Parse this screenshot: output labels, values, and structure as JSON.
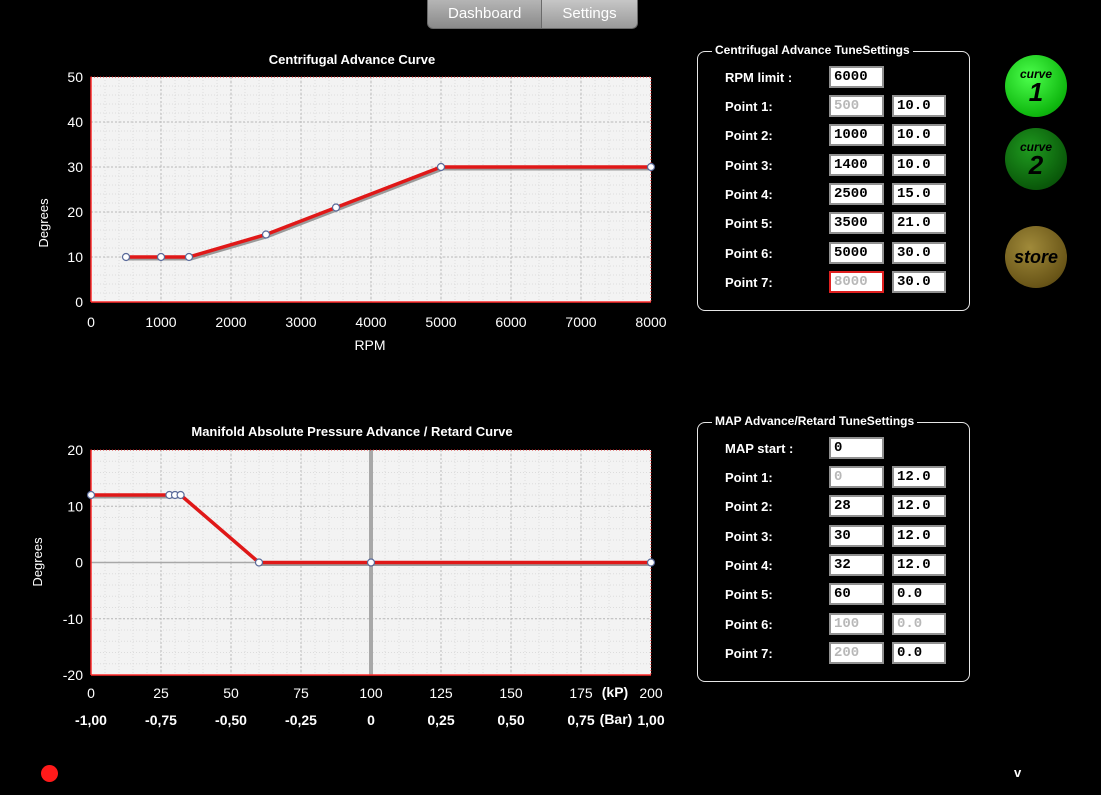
{
  "tabs": [
    {
      "label": "Dashboard",
      "active": false
    },
    {
      "label": "Settings",
      "active": true
    }
  ],
  "centrifugal_chart": {
    "title": "Centrifugal Advance Curve",
    "xlabel": "RPM",
    "ylabel": "Degrees",
    "xticks": [
      "0",
      "1000",
      "2000",
      "3000",
      "4000",
      "5000",
      "6000",
      "7000",
      "8000"
    ],
    "yticks": [
      "0",
      "10",
      "20",
      "30",
      "40",
      "50"
    ]
  },
  "map_chart": {
    "title": "Manifold Absolute Pressure Advance / Retard Curve",
    "ylabel": "Degrees",
    "yticks": [
      "-20",
      "-10",
      "0",
      "10",
      "20"
    ],
    "xticks_kp": [
      "0",
      "25",
      "50",
      "75",
      "100",
      "125",
      "150",
      "175",
      "200"
    ],
    "xticks_bar": [
      "-1,00",
      "-0,75",
      "-0,50",
      "-0,25",
      "0",
      "0,25",
      "0,50",
      "0,75",
      "1,00"
    ],
    "unit_kp": "(kP)",
    "unit_bar": "(Bar)"
  },
  "chart_data": [
    {
      "type": "line",
      "title": "Centrifugal Advance Curve",
      "xlabel": "RPM",
      "ylabel": "Degrees",
      "xlim": [
        0,
        8000
      ],
      "ylim": [
        0,
        50
      ],
      "grid": true,
      "series": [
        {
          "x": [
            500,
            1000,
            1400,
            2500,
            3500,
            5000,
            8000
          ],
          "y": [
            10,
            10,
            10,
            15,
            21,
            30,
            30
          ]
        }
      ],
      "color": "#e01818"
    },
    {
      "type": "line",
      "title": "Manifold Absolute Pressure Advance / Retard Curve",
      "ylabel": "Degrees",
      "xlim": [
        0,
        200
      ],
      "ylim": [
        -20,
        20
      ],
      "grid": true,
      "series": [
        {
          "x": [
            0,
            28,
            30,
            32,
            60,
            100,
            200
          ],
          "y": [
            12,
            12,
            12,
            12,
            0,
            0,
            0
          ]
        }
      ],
      "color": "#e01818"
    }
  ],
  "centrifugal_settings": {
    "title": "Centrifugal Advance TuneSettings",
    "rpm_limit_label": "RPM limit :",
    "rpm_limit": "6000",
    "points": [
      {
        "label": "Point 1:",
        "rpm": "500",
        "deg": "10.0"
      },
      {
        "label": "Point 2:",
        "rpm": "1000",
        "deg": "10.0"
      },
      {
        "label": "Point 3:",
        "rpm": "1400",
        "deg": "10.0"
      },
      {
        "label": "Point 4:",
        "rpm": "2500",
        "deg": "15.0"
      },
      {
        "label": "Point 5:",
        "rpm": "3500",
        "deg": "21.0"
      },
      {
        "label": "Point 6:",
        "rpm": "5000",
        "deg": "30.0"
      },
      {
        "label": "Point 7:",
        "rpm": "8000",
        "deg": "30.0"
      }
    ]
  },
  "map_settings": {
    "title": "MAP Advance/Retard TuneSettings",
    "map_start_label": "MAP start :",
    "map_start": "0",
    "points": [
      {
        "label": "Point 1:",
        "map": "0",
        "deg": "12.0"
      },
      {
        "label": "Point 2:",
        "map": "28",
        "deg": "12.0"
      },
      {
        "label": "Point 3:",
        "map": "30",
        "deg": "12.0"
      },
      {
        "label": "Point 4:",
        "map": "32",
        "deg": "12.0"
      },
      {
        "label": "Point 5:",
        "map": "60",
        "deg": "0.0"
      },
      {
        "label": "Point 6:",
        "map": "100",
        "deg": "0.0"
      },
      {
        "label": "Point 7:",
        "map": "200",
        "deg": "0.0"
      }
    ]
  },
  "buttons": {
    "curve_word": "curve",
    "curve1_num": "1",
    "curve2_num": "2",
    "store_label": "store"
  },
  "status": {
    "indicator_color": "#ff1a1a",
    "version": "v"
  }
}
